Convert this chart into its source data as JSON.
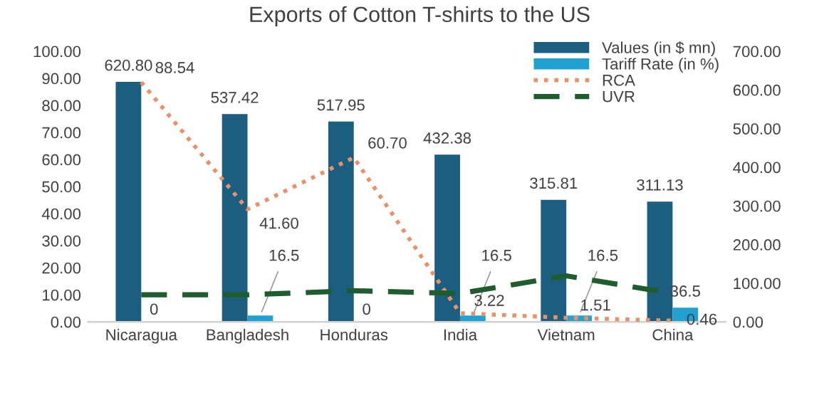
{
  "chart_data": {
    "type": "bar",
    "title": "Exports of Cotton T-shirts to the US",
    "categories": [
      "Nicaragua",
      "Bangladesh",
      "Honduras",
      "India",
      "Vietnam",
      "China"
    ],
    "series": [
      {
        "name": "Values (in $ mn)",
        "axis": "y2",
        "color": "#1b5e80",
        "values": [
          620.8,
          537.42,
          517.95,
          432.38,
          315.81,
          311.13
        ],
        "value_labels": [
          "620.80",
          "537.42",
          "517.95",
          "432.38",
          "315.81",
          "311.13"
        ]
      },
      {
        "name": "Tariff Rate (in %)",
        "axis": "y2",
        "color": "#21a0d2",
        "values": [
          0,
          16.5,
          0,
          16.5,
          16.5,
          36.5
        ],
        "value_labels": [
          "0",
          "16.5",
          "0",
          "16.5",
          "16.5",
          "36.5"
        ]
      },
      {
        "name": "RCA",
        "type": "line",
        "line_style": "dotted",
        "color": "#e8926a",
        "values": [
          88.54,
          41.6,
          60.7,
          3.22,
          1.51,
          0.46
        ],
        "value_labels": [
          "88.54",
          "41.60",
          "60.70",
          "3.22",
          "1.51",
          "0.46"
        ]
      },
      {
        "name": "UVR",
        "type": "line",
        "line_style": "dashed",
        "color": "#1f5c2e",
        "values": [
          10,
          10,
          11.5,
          10.5,
          17,
          10.5
        ]
      }
    ],
    "ylim": [
      0,
      100
    ],
    "yticks": [
      {
        "value": 0,
        "label": "0.00"
      },
      {
        "value": 10,
        "label": "10.00"
      },
      {
        "value": 20,
        "label": "20.00"
      },
      {
        "value": 30,
        "label": "30.00"
      },
      {
        "value": 40,
        "label": "40.00"
      },
      {
        "value": 50,
        "label": "50.00"
      },
      {
        "value": 60,
        "label": "60.00"
      },
      {
        "value": 70,
        "label": "70.00"
      },
      {
        "value": 80,
        "label": "80.00"
      },
      {
        "value": 90,
        "label": "90.00"
      },
      {
        "value": 100,
        "label": "100.00"
      }
    ],
    "y2lim": [
      0,
      700
    ],
    "y2ticks": [
      {
        "value": 0,
        "label": "0.00"
      },
      {
        "value": 100,
        "label": "100.00"
      },
      {
        "value": 200,
        "label": "200.00"
      },
      {
        "value": 300,
        "label": "300.00"
      },
      {
        "value": 400,
        "label": "400.00"
      },
      {
        "value": 500,
        "label": "500.00"
      },
      {
        "value": 600,
        "label": "600.00"
      },
      {
        "value": 700,
        "label": "700.00"
      }
    ],
    "legend": "top right",
    "grid": false
  }
}
